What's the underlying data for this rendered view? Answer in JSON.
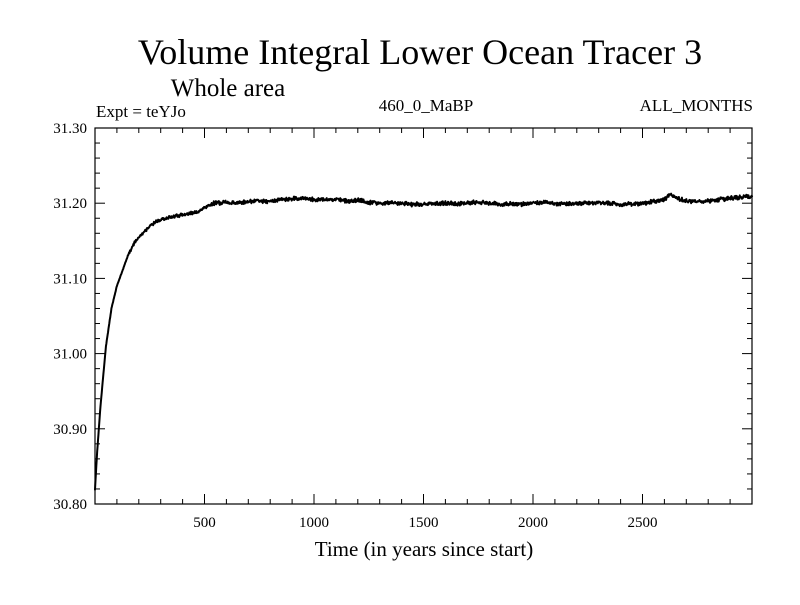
{
  "chart_data": {
    "type": "line",
    "title": "Volume Integral Lower Ocean Tracer 3",
    "subtitle": "Whole area",
    "experiment_label": "Expt = teYJo",
    "period_label": "460_0_MaBP",
    "season_label": "ALL_MONTHS",
    "xlabel": "Time (in years since start)",
    "ylabel": "",
    "xlim": [
      0,
      3000
    ],
    "ylim": [
      30.8,
      31.3
    ],
    "x_ticks": [
      500,
      1000,
      1500,
      2000,
      2500
    ],
    "x_tick_labels": [
      "500",
      "1000",
      "1500",
      "2000",
      "2500"
    ],
    "y_ticks": [
      30.8,
      30.9,
      31.0,
      31.1,
      31.2,
      31.3
    ],
    "y_tick_labels": [
      "30.80",
      "30.90",
      "31.00",
      "31.10",
      "31.20",
      "31.30"
    ],
    "grid": false,
    "line_color": "#000000",
    "series": [
      {
        "name": "Lower Ocean Tracer 3",
        "x": [
          0,
          10,
          25,
          50,
          75,
          100,
          125,
          150,
          175,
          200,
          225,
          250,
          275,
          300,
          325,
          350,
          375,
          400,
          425,
          450,
          475,
          500,
          525,
          550,
          600,
          650,
          700,
          750,
          800,
          850,
          900,
          950,
          1000,
          1050,
          1100,
          1150,
          1200,
          1250,
          1300,
          1350,
          1400,
          1450,
          1500,
          1550,
          1600,
          1650,
          1700,
          1750,
          1800,
          1850,
          1900,
          1950,
          2000,
          2050,
          2100,
          2150,
          2200,
          2250,
          2300,
          2350,
          2400,
          2450,
          2500,
          2550,
          2600,
          2625,
          2650,
          2700,
          2750,
          2800,
          2850,
          2900,
          2950,
          3000
        ],
        "values": [
          30.82,
          30.87,
          30.93,
          31.01,
          31.06,
          31.09,
          31.11,
          31.13,
          31.145,
          31.155,
          31.162,
          31.17,
          31.175,
          31.178,
          31.18,
          31.182,
          31.183,
          31.185,
          31.186,
          31.187,
          31.188,
          31.195,
          31.198,
          31.2,
          31.201,
          31.2,
          31.202,
          31.203,
          31.203,
          31.205,
          31.206,
          31.206,
          31.205,
          31.204,
          31.205,
          31.203,
          31.204,
          31.201,
          31.2,
          31.201,
          31.2,
          31.198,
          31.199,
          31.2,
          31.2,
          31.199,
          31.2,
          31.201,
          31.2,
          31.198,
          31.199,
          31.199,
          31.2,
          31.201,
          31.2,
          31.199,
          31.2,
          31.2,
          31.201,
          31.2,
          31.198,
          31.199,
          31.2,
          31.202,
          31.205,
          31.212,
          31.207,
          31.203,
          31.202,
          31.203,
          31.205,
          31.207,
          31.208,
          31.21
        ]
      }
    ]
  }
}
